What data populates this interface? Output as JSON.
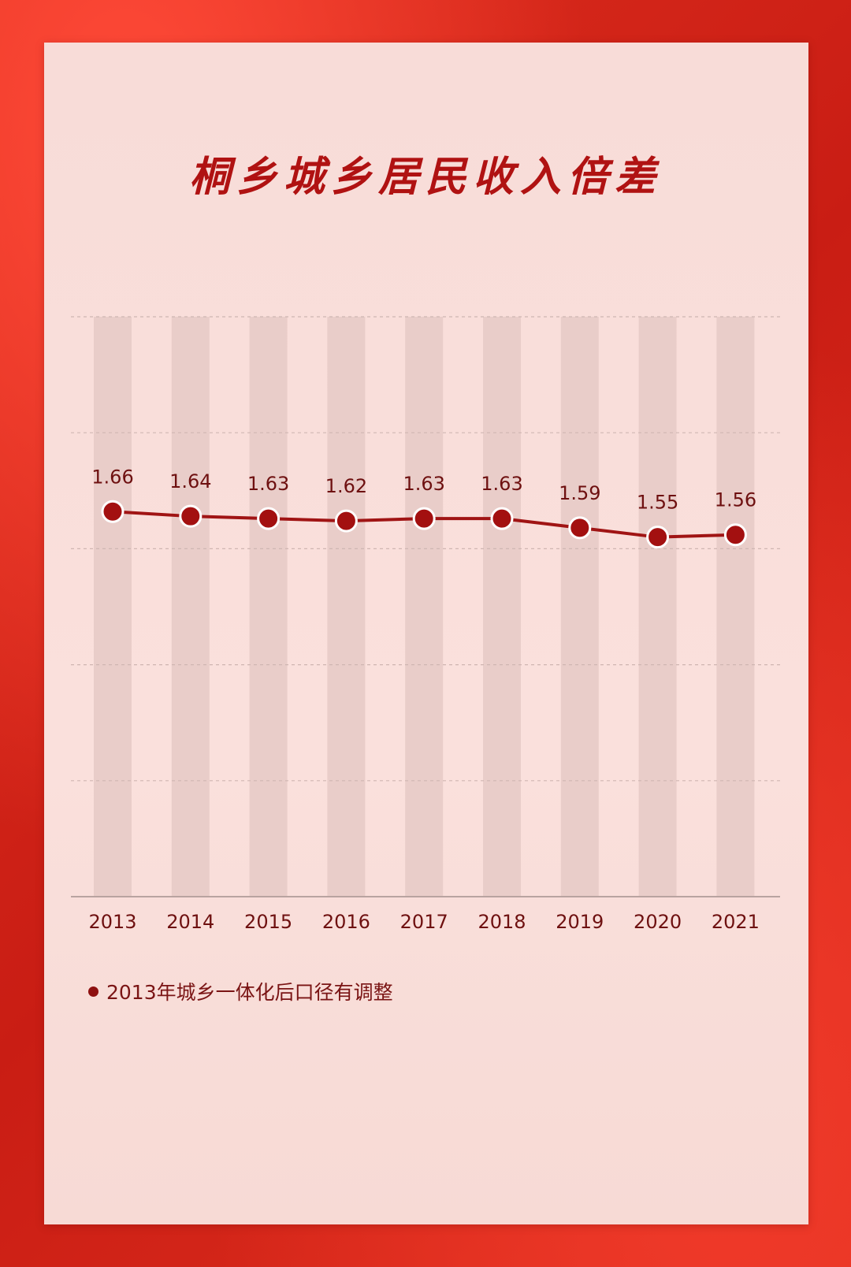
{
  "colors": {
    "line": "#a01414",
    "marker": "#a31010",
    "marker_stroke": "#ffffff",
    "label": "#6e1010",
    "column": "#e9cdc9",
    "grid": "#cfb6b2",
    "axis": "#b9a3a0"
  },
  "chart_data": {
    "type": "line",
    "title": "桐乡城乡居民收入倍差",
    "categories": [
      "2013",
      "2014",
      "2015",
      "2016",
      "2017",
      "2018",
      "2019",
      "2020",
      "2021"
    ],
    "series": [
      {
        "values": [
          1.66,
          1.64,
          1.63,
          1.62,
          1.63,
          1.63,
          1.59,
          1.55,
          1.56
        ]
      }
    ],
    "data_labels": [
      "1.66",
      "1.64",
      "1.63",
      "1.62",
      "1.63",
      "1.63",
      "1.59",
      "1.55",
      "1.56"
    ],
    "ylim": [
      0,
      2.5
    ],
    "grid": true,
    "legend": "none",
    "note": "2013年城乡一体化后口径有调整"
  }
}
